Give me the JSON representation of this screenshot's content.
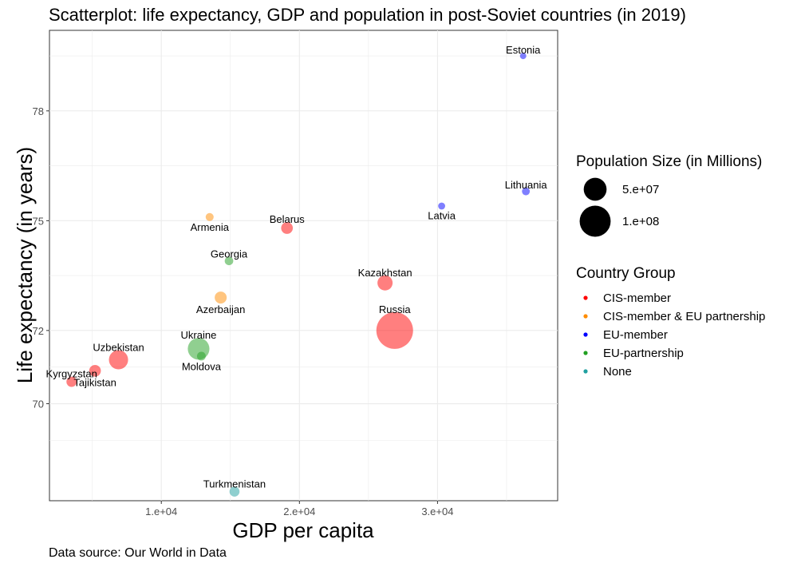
{
  "chart_data": {
    "type": "scatter",
    "title": "Scatterplot: life expectancy, GDP and population in post-Soviet countries (in 2019)",
    "xlabel": "GDP per capita",
    "ylabel": "Life expectancy (in years)",
    "caption": "Data source: Our World in Data",
    "xlim": [
      1900,
      38700
    ],
    "ylim": [
      67.35,
      80.2
    ],
    "x_ticks": [
      {
        "value": 10000,
        "label": "1.e+04"
      },
      {
        "value": 20000,
        "label": "2.e+04"
      },
      {
        "value": 30000,
        "label": "3.e+04"
      }
    ],
    "y_ticks": [
      {
        "value": 70,
        "label": "70"
      },
      {
        "value": 72,
        "label": "72"
      },
      {
        "value": 75,
        "label": "75"
      },
      {
        "value": 78,
        "label": "78"
      }
    ],
    "size_legend": {
      "title": "Population Size (in Millions)",
      "entries": [
        {
          "label": "5.e+07",
          "value": 50000000
        },
        {
          "label": "1.e+08",
          "value": 100000000
        }
      ]
    },
    "color_legend": {
      "title": "Country Group",
      "groups": [
        {
          "name": "CIS-member",
          "color": "#ff0000"
        },
        {
          "name": "CIS-member & EU partnership",
          "color": "#ff8c00"
        },
        {
          "name": "EU-member",
          "color": "#0000ff"
        },
        {
          "name": "EU-partnership",
          "color": "#22a022"
        },
        {
          "name": "None",
          "color": "#20a0a0"
        }
      ]
    },
    "points": [
      {
        "country": "Estonia",
        "gdp": 36200,
        "life": 79.5,
        "pop": 1300000,
        "group": "EU-member",
        "label_pos": "above"
      },
      {
        "country": "Lithuania",
        "gdp": 36400,
        "life": 75.8,
        "pop": 2800000,
        "group": "EU-member",
        "label_pos": "above"
      },
      {
        "country": "Latvia",
        "gdp": 30300,
        "life": 75.4,
        "pop": 1900000,
        "group": "EU-member",
        "label_pos": "below"
      },
      {
        "country": "Armenia",
        "gdp": 13500,
        "life": 75.1,
        "pop": 3000000,
        "group": "CIS-member & EU partnership",
        "label_pos": "below"
      },
      {
        "country": "Belarus",
        "gdp": 19100,
        "life": 74.8,
        "pop": 9400000,
        "group": "CIS-member",
        "label_pos": "above"
      },
      {
        "country": "Georgia",
        "gdp": 14900,
        "life": 73.9,
        "pop": 3700000,
        "group": "EU-partnership",
        "label_pos": "above"
      },
      {
        "country": "Kazakhstan",
        "gdp": 26200,
        "life": 73.3,
        "pop": 18500000,
        "group": "CIS-member",
        "label_pos": "above"
      },
      {
        "country": "Azerbaijan",
        "gdp": 14300,
        "life": 72.9,
        "pop": 10000000,
        "group": "CIS-member & EU partnership",
        "label_pos": "below"
      },
      {
        "country": "Russia",
        "gdp": 26900,
        "life": 72.0,
        "pop": 145000000,
        "group": "CIS-member",
        "label_pos": "above"
      },
      {
        "country": "Ukraine",
        "gdp": 12700,
        "life": 71.5,
        "pop": 44000000,
        "group": "EU-partnership",
        "label_pos": "above"
      },
      {
        "country": "Moldova",
        "gdp": 12900,
        "life": 71.3,
        "pop": 4000000,
        "group": "EU-partnership",
        "label_pos": "below"
      },
      {
        "country": "Uzbekistan",
        "gdp": 6900,
        "life": 71.2,
        "pop": 33000000,
        "group": "CIS-member",
        "label_pos": "above"
      },
      {
        "country": "Tajikistan",
        "gdp": 5200,
        "life": 70.9,
        "pop": 9300000,
        "group": "CIS-member",
        "label_pos": "below"
      },
      {
        "country": "Kyrgyzstan",
        "gdp": 3500,
        "life": 70.6,
        "pop": 6400000,
        "group": "CIS-member",
        "label_pos": "above"
      },
      {
        "country": "Turkmenistan",
        "gdp": 15300,
        "life": 67.6,
        "pop": 6000000,
        "group": "None",
        "label_pos": "above"
      }
    ]
  }
}
